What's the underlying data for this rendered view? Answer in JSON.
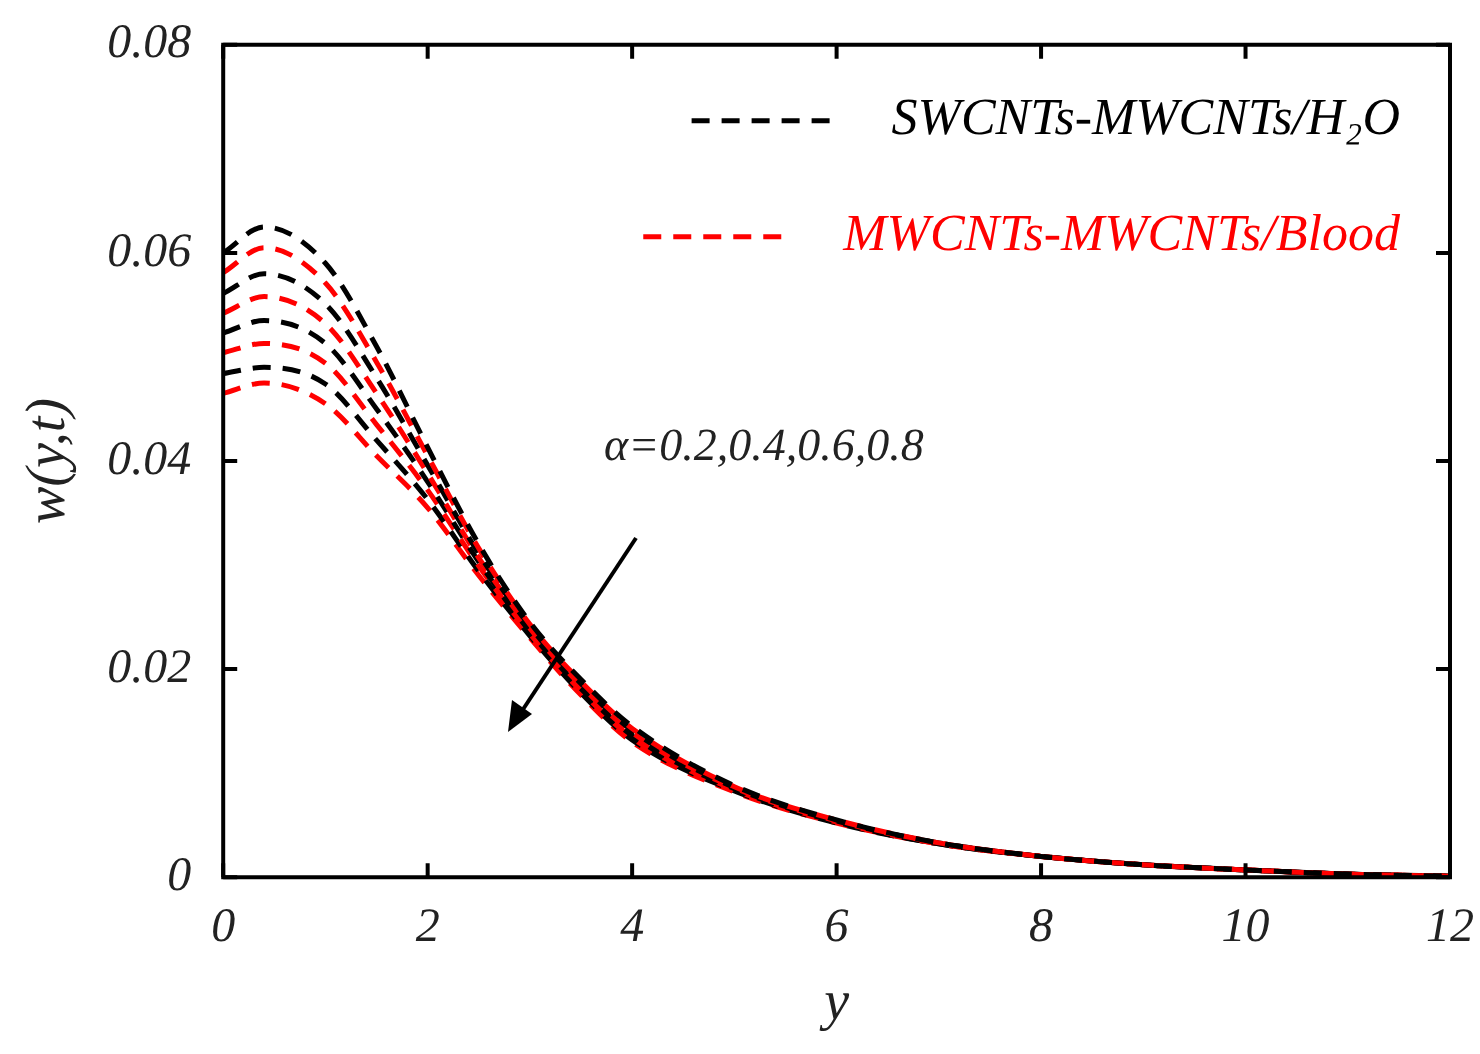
{
  "chart_data": {
    "type": "line",
    "xlabel": "y",
    "ylabel": "w(y,t)",
    "x": [
      0,
      0.4,
      1,
      1.5,
      2,
      2.5,
      3,
      3.5,
      4,
      5,
      6,
      7,
      8,
      9,
      10,
      11,
      12
    ],
    "xlim": [
      0,
      12
    ],
    "xticks": [
      0,
      2,
      4,
      6,
      8,
      10,
      12
    ],
    "ylim": [
      0,
      0.08
    ],
    "yticks": [
      0,
      0.02,
      0.04,
      0.06,
      0.08
    ],
    "legend": "top right",
    "marker": "none",
    "line_style": "dashed",
    "grid": false,
    "annotations": [
      "α=0.2,0.4,0.6,0.8"
    ],
    "series": [
      {
        "name": "SWCNTs-MWCNTs/H₂O",
        "color": "#000000",
        "values": [
          0.06,
          0.0625,
          0.059,
          0.051,
          0.0413,
          0.032,
          0.0245,
          0.019,
          0.0145,
          0.0088,
          0.0055,
          0.0033,
          0.002,
          0.0012,
          0.0007,
          0.0003,
          0.0001
        ]
      },
      {
        "name": "MWCNTs-MWCNTs/Blood",
        "color": "#ff0000",
        "values": [
          0.0581,
          0.0605,
          0.0571,
          0.0495,
          0.0405,
          0.0316,
          0.0243,
          0.0188,
          0.0143,
          0.0087,
          0.0055,
          0.0033,
          0.002,
          0.0012,
          0.0007,
          0.0003,
          0.0001
        ]
      },
      {
        "color": "#000000",
        "values": [
          0.0561,
          0.058,
          0.0551,
          0.048,
          0.0396,
          0.0311,
          0.0241,
          0.0186,
          0.0141,
          0.0086,
          0.0054,
          0.0033,
          0.002,
          0.0012,
          0.0007,
          0.0003,
          0.0001
        ]
      },
      {
        "color": "#ff0000",
        "values": [
          0.0542,
          0.0558,
          0.0532,
          0.0465,
          0.0388,
          0.0307,
          0.0239,
          0.0184,
          0.0139,
          0.0086,
          0.0054,
          0.0033,
          0.002,
          0.0012,
          0.0007,
          0.0003,
          0.0001
        ]
      },
      {
        "color": "#000000",
        "values": [
          0.0523,
          0.0535,
          0.0513,
          0.045,
          0.038,
          0.0303,
          0.0236,
          0.0181,
          0.0136,
          0.0085,
          0.0053,
          0.0032,
          0.002,
          0.0012,
          0.0007,
          0.0003,
          0.0001
        ]
      },
      {
        "color": "#ff0000",
        "values": [
          0.0504,
          0.0513,
          0.0494,
          0.0435,
          0.0372,
          0.0299,
          0.0234,
          0.0179,
          0.0134,
          0.0084,
          0.0053,
          0.0032,
          0.002,
          0.0012,
          0.0007,
          0.0003,
          0.0001
        ]
      },
      {
        "color": "#000000",
        "values": [
          0.0484,
          0.049,
          0.0474,
          0.042,
          0.0363,
          0.0294,
          0.0232,
          0.0177,
          0.0132,
          0.0083,
          0.0052,
          0.0032,
          0.002,
          0.0012,
          0.0007,
          0.0003,
          0.0001
        ]
      },
      {
        "color": "#ff0000",
        "values": [
          0.0465,
          0.0475,
          0.0455,
          0.0405,
          0.0355,
          0.029,
          0.023,
          0.0175,
          0.013,
          0.0082,
          0.0052,
          0.0032,
          0.002,
          0.0012,
          0.0007,
          0.0003,
          0.0001
        ]
      }
    ]
  }
}
